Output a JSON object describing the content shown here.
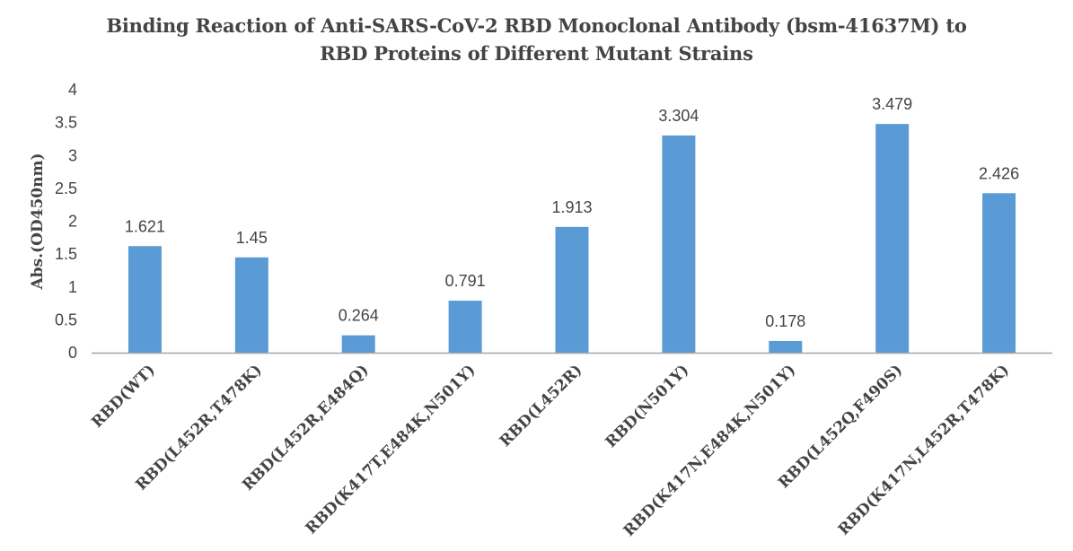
{
  "chart_data": {
    "type": "bar",
    "title_lines": [
      "Binding Reaction of Anti-SARS-CoV-2 RBD Monoclonal Antibody (bsm-41637M) to",
      "RBD Proteins of Different Mutant Strains"
    ],
    "ylabel": "Abs.(OD450nm)",
    "xlabel": "",
    "ylim": [
      0,
      4
    ],
    "yticks": [
      "0",
      "0.5",
      "1",
      "1.5",
      "2",
      "2.5",
      "3",
      "3.5",
      "4"
    ],
    "ytick_values": [
      0,
      0.5,
      1,
      1.5,
      2,
      2.5,
      3,
      3.5,
      4
    ],
    "categories": [
      "RBD(WT)",
      "RBD(L452R,T478K)",
      "RBD(L452R,E484Q)",
      "RBD(K417T,E484K,N501Y)",
      "RBD(L452R)",
      "RBD(N501Y)",
      "RBD(K417N,E484K,N501Y)",
      "RBD(L452Q,F490S)",
      "RBD(K417N,L452R,T478K)"
    ],
    "values": [
      1.621,
      1.45,
      0.264,
      0.791,
      1.913,
      3.304,
      0.178,
      3.479,
      2.426
    ],
    "data_labels": [
      "1.621",
      "1.45",
      "0.264",
      "0.791",
      "1.913",
      "3.304",
      "0.178",
      "3.479",
      "2.426"
    ],
    "bar_color": "#5B9BD5",
    "axis_color": "#A6A6A6",
    "grid": false,
    "legend": "none"
  }
}
